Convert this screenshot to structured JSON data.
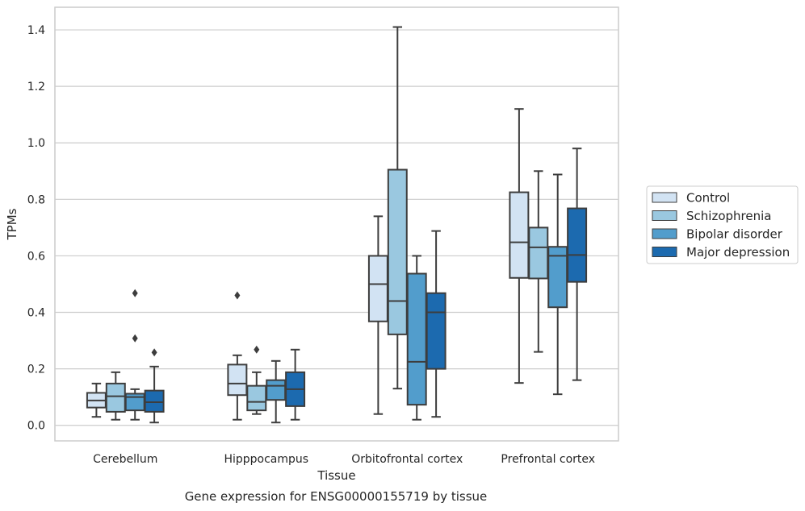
{
  "chart_data": {
    "type": "box",
    "xlabel": "Tissue",
    "ylabel": "TPMs",
    "caption": "Gene expression for ENSG00000155719 by tissue",
    "ylim": [
      -0.055,
      1.48
    ],
    "yticks": [
      "0.0",
      "0.2",
      "0.4",
      "0.6",
      "0.8",
      "1.0",
      "1.2",
      "1.4"
    ],
    "ytick_values": [
      0.0,
      0.2,
      0.4,
      0.6,
      0.8,
      1.0,
      1.2,
      1.4
    ],
    "grid": "horizontal",
    "legend_position": "right",
    "categories": [
      "Cerebellum",
      "Hipppocampus",
      "Orbitofrontal cortex",
      "Prefrontal cortex"
    ],
    "series": [
      {
        "name": "Control",
        "color": "#d2e3f3",
        "boxes": [
          {
            "whislo": 0.03,
            "q1": 0.063,
            "med": 0.088,
            "q3": 0.115,
            "whishi": 0.148,
            "fliers": []
          },
          {
            "whislo": 0.02,
            "q1": 0.107,
            "med": 0.148,
            "q3": 0.215,
            "whishi": 0.248,
            "fliers": [
              0.46
            ]
          },
          {
            "whislo": 0.04,
            "q1": 0.368,
            "med": 0.5,
            "q3": 0.6,
            "whishi": 0.74,
            "fliers": []
          },
          {
            "whislo": 0.15,
            "q1": 0.522,
            "med": 0.648,
            "q3": 0.825,
            "whishi": 1.12,
            "fliers": []
          }
        ]
      },
      {
        "name": "Schizophrenia",
        "color": "#9ac8e0",
        "boxes": [
          {
            "whislo": 0.02,
            "q1": 0.048,
            "med": 0.103,
            "q3": 0.148,
            "whishi": 0.188,
            "fliers": []
          },
          {
            "whislo": 0.04,
            "q1": 0.053,
            "med": 0.083,
            "q3": 0.14,
            "whishi": 0.188,
            "fliers": [
              0.268
            ]
          },
          {
            "whislo": 0.13,
            "q1": 0.322,
            "med": 0.44,
            "q3": 0.905,
            "whishi": 1.41,
            "fliers": []
          },
          {
            "whislo": 0.26,
            "q1": 0.52,
            "med": 0.63,
            "q3": 0.7,
            "whishi": 0.9,
            "fliers": []
          }
        ]
      },
      {
        "name": "Bipolar disorder",
        "color": "#529dcc",
        "boxes": [
          {
            "whislo": 0.02,
            "q1": 0.053,
            "med": 0.1,
            "q3": 0.112,
            "whishi": 0.128,
            "fliers": [
              0.308,
              0.468
            ]
          },
          {
            "whislo": 0.01,
            "q1": 0.09,
            "med": 0.14,
            "q3": 0.16,
            "whishi": 0.228,
            "fliers": []
          },
          {
            "whislo": 0.02,
            "q1": 0.073,
            "med": 0.225,
            "q3": 0.537,
            "whishi": 0.6,
            "fliers": []
          },
          {
            "whislo": 0.11,
            "q1": 0.418,
            "med": 0.6,
            "q3": 0.632,
            "whishi": 0.888,
            "fliers": []
          }
        ]
      },
      {
        "name": "Major depression",
        "color": "#1c6aaf",
        "boxes": [
          {
            "whislo": 0.01,
            "q1": 0.048,
            "med": 0.082,
            "q3": 0.123,
            "whishi": 0.208,
            "fliers": [
              0.258
            ]
          },
          {
            "whislo": 0.02,
            "q1": 0.068,
            "med": 0.128,
            "q3": 0.188,
            "whishi": 0.268,
            "fliers": []
          },
          {
            "whislo": 0.03,
            "q1": 0.2,
            "med": 0.4,
            "q3": 0.468,
            "whishi": 0.688,
            "fliers": []
          },
          {
            "whislo": 0.16,
            "q1": 0.508,
            "med": 0.603,
            "q3": 0.768,
            "whishi": 0.98,
            "fliers": []
          }
        ]
      }
    ]
  }
}
